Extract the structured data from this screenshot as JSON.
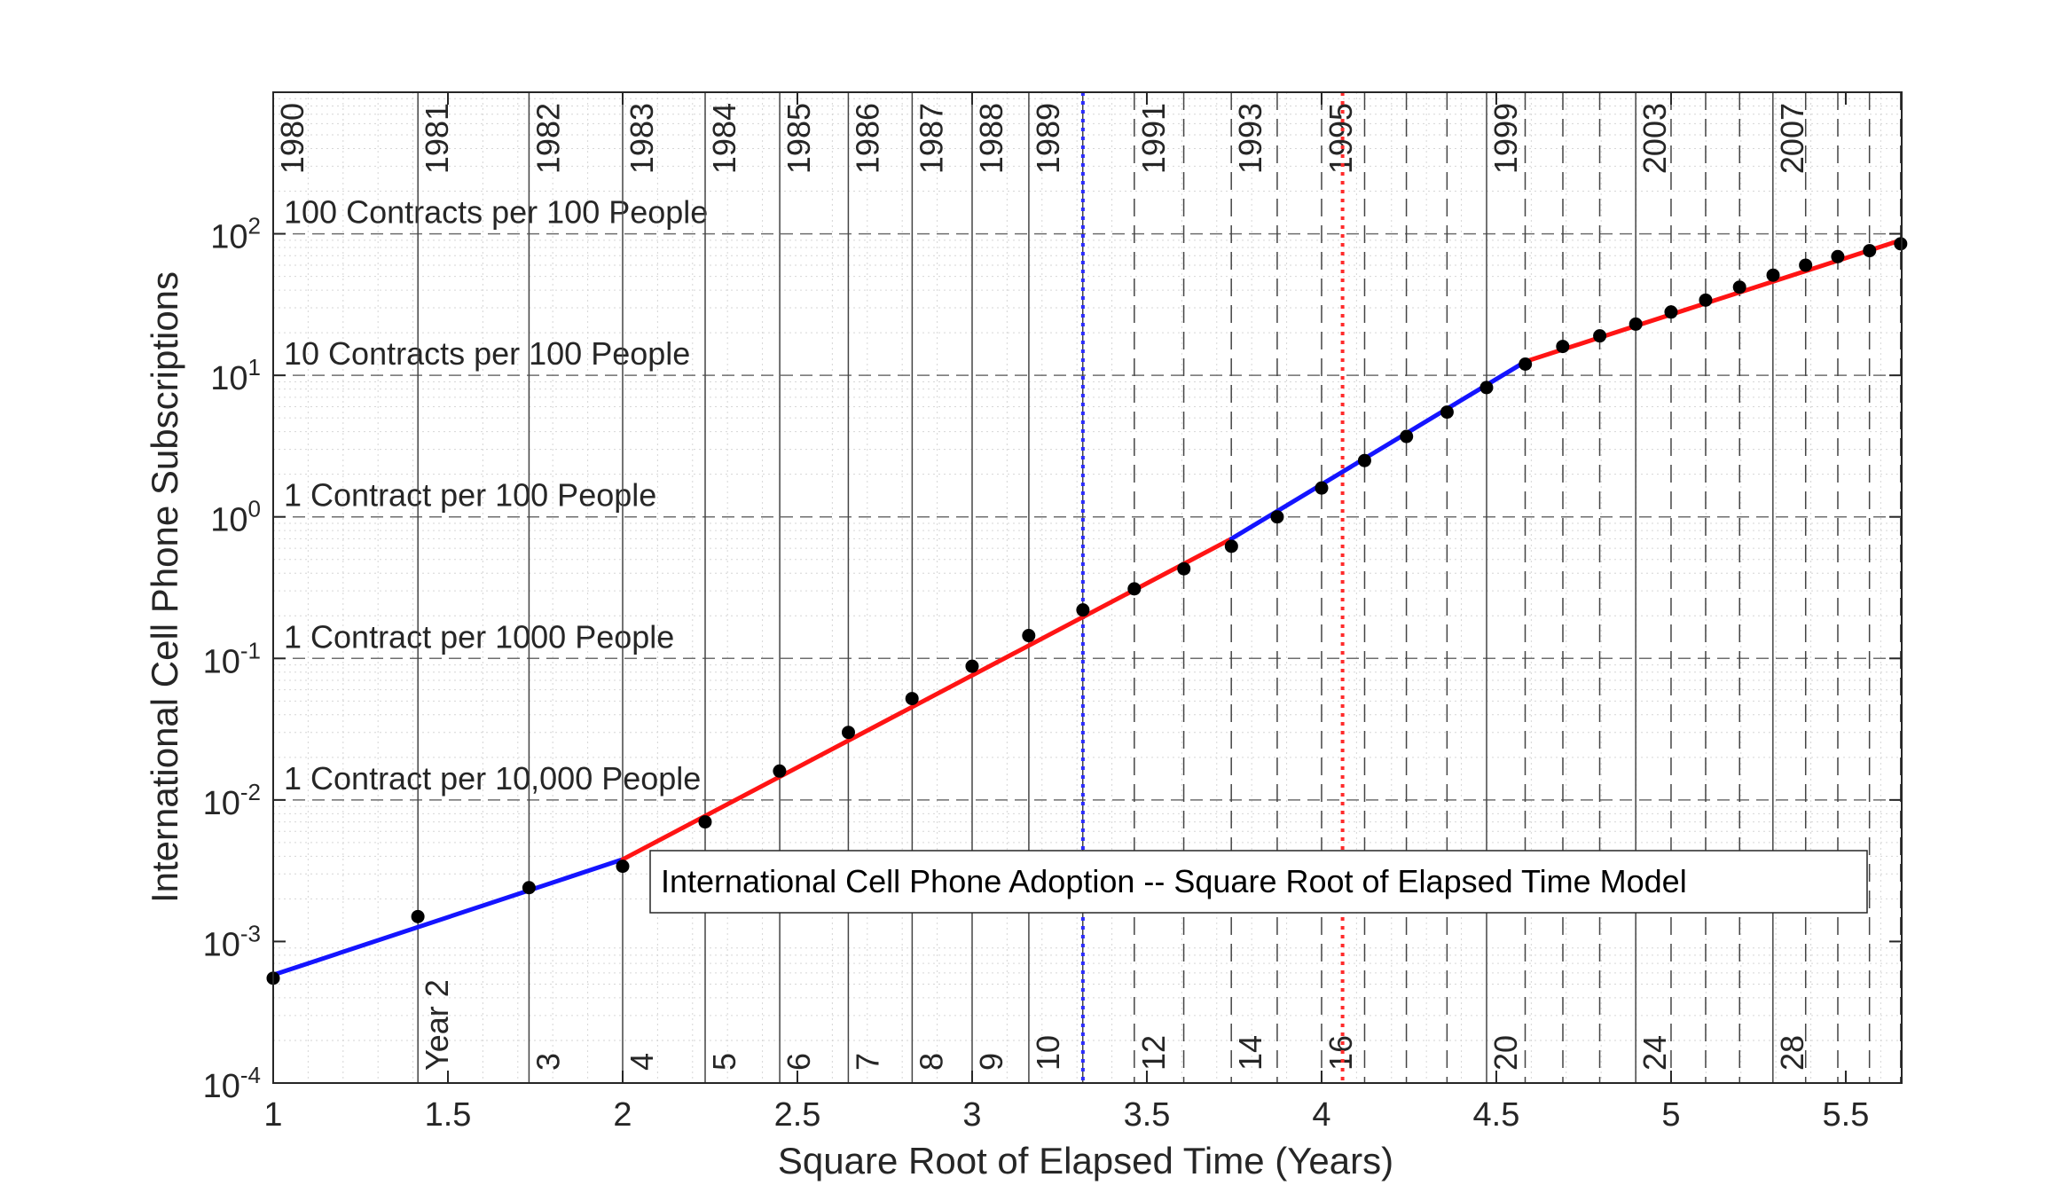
{
  "chart_data": {
    "type": "line",
    "title": "",
    "xlabel": "Square Root of Elapsed Time (Years)",
    "ylabel": "International Cell Phone Subscriptions",
    "xlim": [
      1,
      5.66
    ],
    "ylim_log10": [
      -4,
      3
    ],
    "y_scale": "log",
    "grid": true,
    "legend_text": "International Cell Phone Adoption -- Square Root of Elapsed Time Model",
    "legend_placement": "center-right",
    "x_ticks": [
      1,
      1.5,
      2,
      2.5,
      3,
      3.5,
      4,
      4.5,
      5,
      5.5
    ],
    "x_tick_labels": [
      "1",
      "1.5",
      "2",
      "2.5",
      "3",
      "3.5",
      "4",
      "4.5",
      "5",
      "5.5"
    ],
    "y_ticks": [
      {
        "base": "10",
        "exp": "-4",
        "value_log10": -4
      },
      {
        "base": "10",
        "exp": "-3",
        "value_log10": -3
      },
      {
        "base": "10",
        "exp": "-2",
        "value_log10": -2
      },
      {
        "base": "10",
        "exp": "-1",
        "value_log10": -1
      },
      {
        "base": "10",
        "exp": "0",
        "value_log10": 0
      },
      {
        "base": "10",
        "exp": "1",
        "value_log10": 1
      },
      {
        "base": "10",
        "exp": "2",
        "value_log10": 2
      }
    ],
    "reference_lines": [
      {
        "label": "100 Contracts per 100 People",
        "y": 100
      },
      {
        "label": "10 Contracts per 100 People",
        "y": 10
      },
      {
        "label": "1 Contract per 100 People",
        "y": 1
      },
      {
        "label": "1 Contract per 1000 People",
        "y": 0.1
      },
      {
        "label": "1 Contract per 10,000 People",
        "y": 0.01
      }
    ],
    "year_markers": [
      {
        "year": 1,
        "label": "1980",
        "style": "solid"
      },
      {
        "year": 2,
        "label": "1981",
        "style": "solid"
      },
      {
        "year": 3,
        "label": "1982",
        "style": "solid"
      },
      {
        "year": 4,
        "label": "1983",
        "style": "solid"
      },
      {
        "year": 5,
        "label": "1984",
        "style": "solid"
      },
      {
        "year": 6,
        "label": "1985",
        "style": "solid"
      },
      {
        "year": 7,
        "label": "1986",
        "style": "solid"
      },
      {
        "year": 8,
        "label": "1987",
        "style": "solid"
      },
      {
        "year": 9,
        "label": "1988",
        "style": "solid"
      },
      {
        "year": 10,
        "label": "1989",
        "style": "solid"
      },
      {
        "year": 11,
        "label": "",
        "style": "solid"
      },
      {
        "year": 12,
        "label": "1991",
        "style": "dashed"
      },
      {
        "year": 13,
        "label": "",
        "style": "dashed"
      },
      {
        "year": 14,
        "label": "1993",
        "style": "dashed"
      },
      {
        "year": 15,
        "label": "",
        "style": "dashed"
      },
      {
        "year": 16,
        "label": "1995",
        "style": "dashed"
      },
      {
        "year": 17,
        "label": "",
        "style": "dashed"
      },
      {
        "year": 18,
        "label": "",
        "style": "dashed"
      },
      {
        "year": 19,
        "label": "",
        "style": "dashed"
      },
      {
        "year": 20,
        "label": "1999",
        "style": "solid"
      },
      {
        "year": 21,
        "label": "",
        "style": "dashed"
      },
      {
        "year": 22,
        "label": "",
        "style": "dashed"
      },
      {
        "year": 23,
        "label": "",
        "style": "dashed"
      },
      {
        "year": 24,
        "label": "2003",
        "style": "solid"
      },
      {
        "year": 25,
        "label": "",
        "style": "dashed"
      },
      {
        "year": 26,
        "label": "",
        "style": "dashed"
      },
      {
        "year": 27,
        "label": "",
        "style": "dashed"
      },
      {
        "year": 28,
        "label": "2007",
        "style": "solid"
      },
      {
        "year": 29,
        "label": "",
        "style": "dashed"
      },
      {
        "year": 30,
        "label": "",
        "style": "dashed"
      },
      {
        "year": 31,
        "label": "",
        "style": "dashed"
      },
      {
        "year": 32,
        "label": "",
        "style": "dashed"
      }
    ],
    "year_count_labels": [
      {
        "year": 2,
        "label": "Year 2"
      },
      {
        "year": 3,
        "label": "3"
      },
      {
        "year": 4,
        "label": "4"
      },
      {
        "year": 5,
        "label": "5"
      },
      {
        "year": 6,
        "label": "6"
      },
      {
        "year": 7,
        "label": "7"
      },
      {
        "year": 8,
        "label": "8"
      },
      {
        "year": 9,
        "label": "9"
      },
      {
        "year": 10,
        "label": "10"
      },
      {
        "year": 12,
        "label": "12"
      },
      {
        "year": 14,
        "label": "14"
      },
      {
        "year": 16,
        "label": "16"
      },
      {
        "year": 20,
        "label": "20"
      },
      {
        "year": 24,
        "label": "24"
      },
      {
        "year": 28,
        "label": "28"
      }
    ],
    "vertical_markers": [
      {
        "x": 3.317,
        "color": "#2b2bff",
        "style": "dotted"
      },
      {
        "x": 4.06,
        "color": "#ff2b2b",
        "style": "dotted"
      }
    ],
    "points": {
      "x": [
        1,
        1.414,
        1.732,
        2,
        2.236,
        2.449,
        2.646,
        2.828,
        3,
        3.162,
        3.317,
        3.464,
        3.606,
        3.742,
        3.873,
        4,
        4.123,
        4.243,
        4.359,
        4.472,
        4.583,
        4.69,
        4.796,
        4.899,
        5,
        5.099,
        5.196,
        5.292,
        5.385,
        5.477,
        5.568,
        5.657
      ],
      "y": [
        0.00055,
        0.0015,
        0.0024,
        0.0034,
        0.007,
        0.016,
        0.03,
        0.052,
        0.088,
        0.145,
        0.22,
        0.31,
        0.43,
        0.62,
        1.0,
        1.6,
        2.5,
        3.7,
        5.5,
        8.2,
        12.0,
        16.0,
        19.0,
        23.0,
        28.0,
        34.0,
        42.0,
        51.0,
        60.0,
        69.0,
        76.0,
        85.0
      ],
      "color": "#000000"
    },
    "segments": [
      {
        "color": "#1414ff",
        "x": [
          1,
          2
        ],
        "y": [
          0.00058,
          0.0038
        ]
      },
      {
        "color": "#ff1414",
        "x": [
          2,
          3.742
        ],
        "y": [
          0.0038,
          0.7
        ]
      },
      {
        "color": "#1414ff",
        "x": [
          3.742,
          4.583
        ],
        "y": [
          0.7,
          12.5
        ]
      },
      {
        "color": "#ff1414",
        "x": [
          4.583,
          5.657
        ],
        "y": [
          12.5,
          90
        ]
      }
    ]
  }
}
